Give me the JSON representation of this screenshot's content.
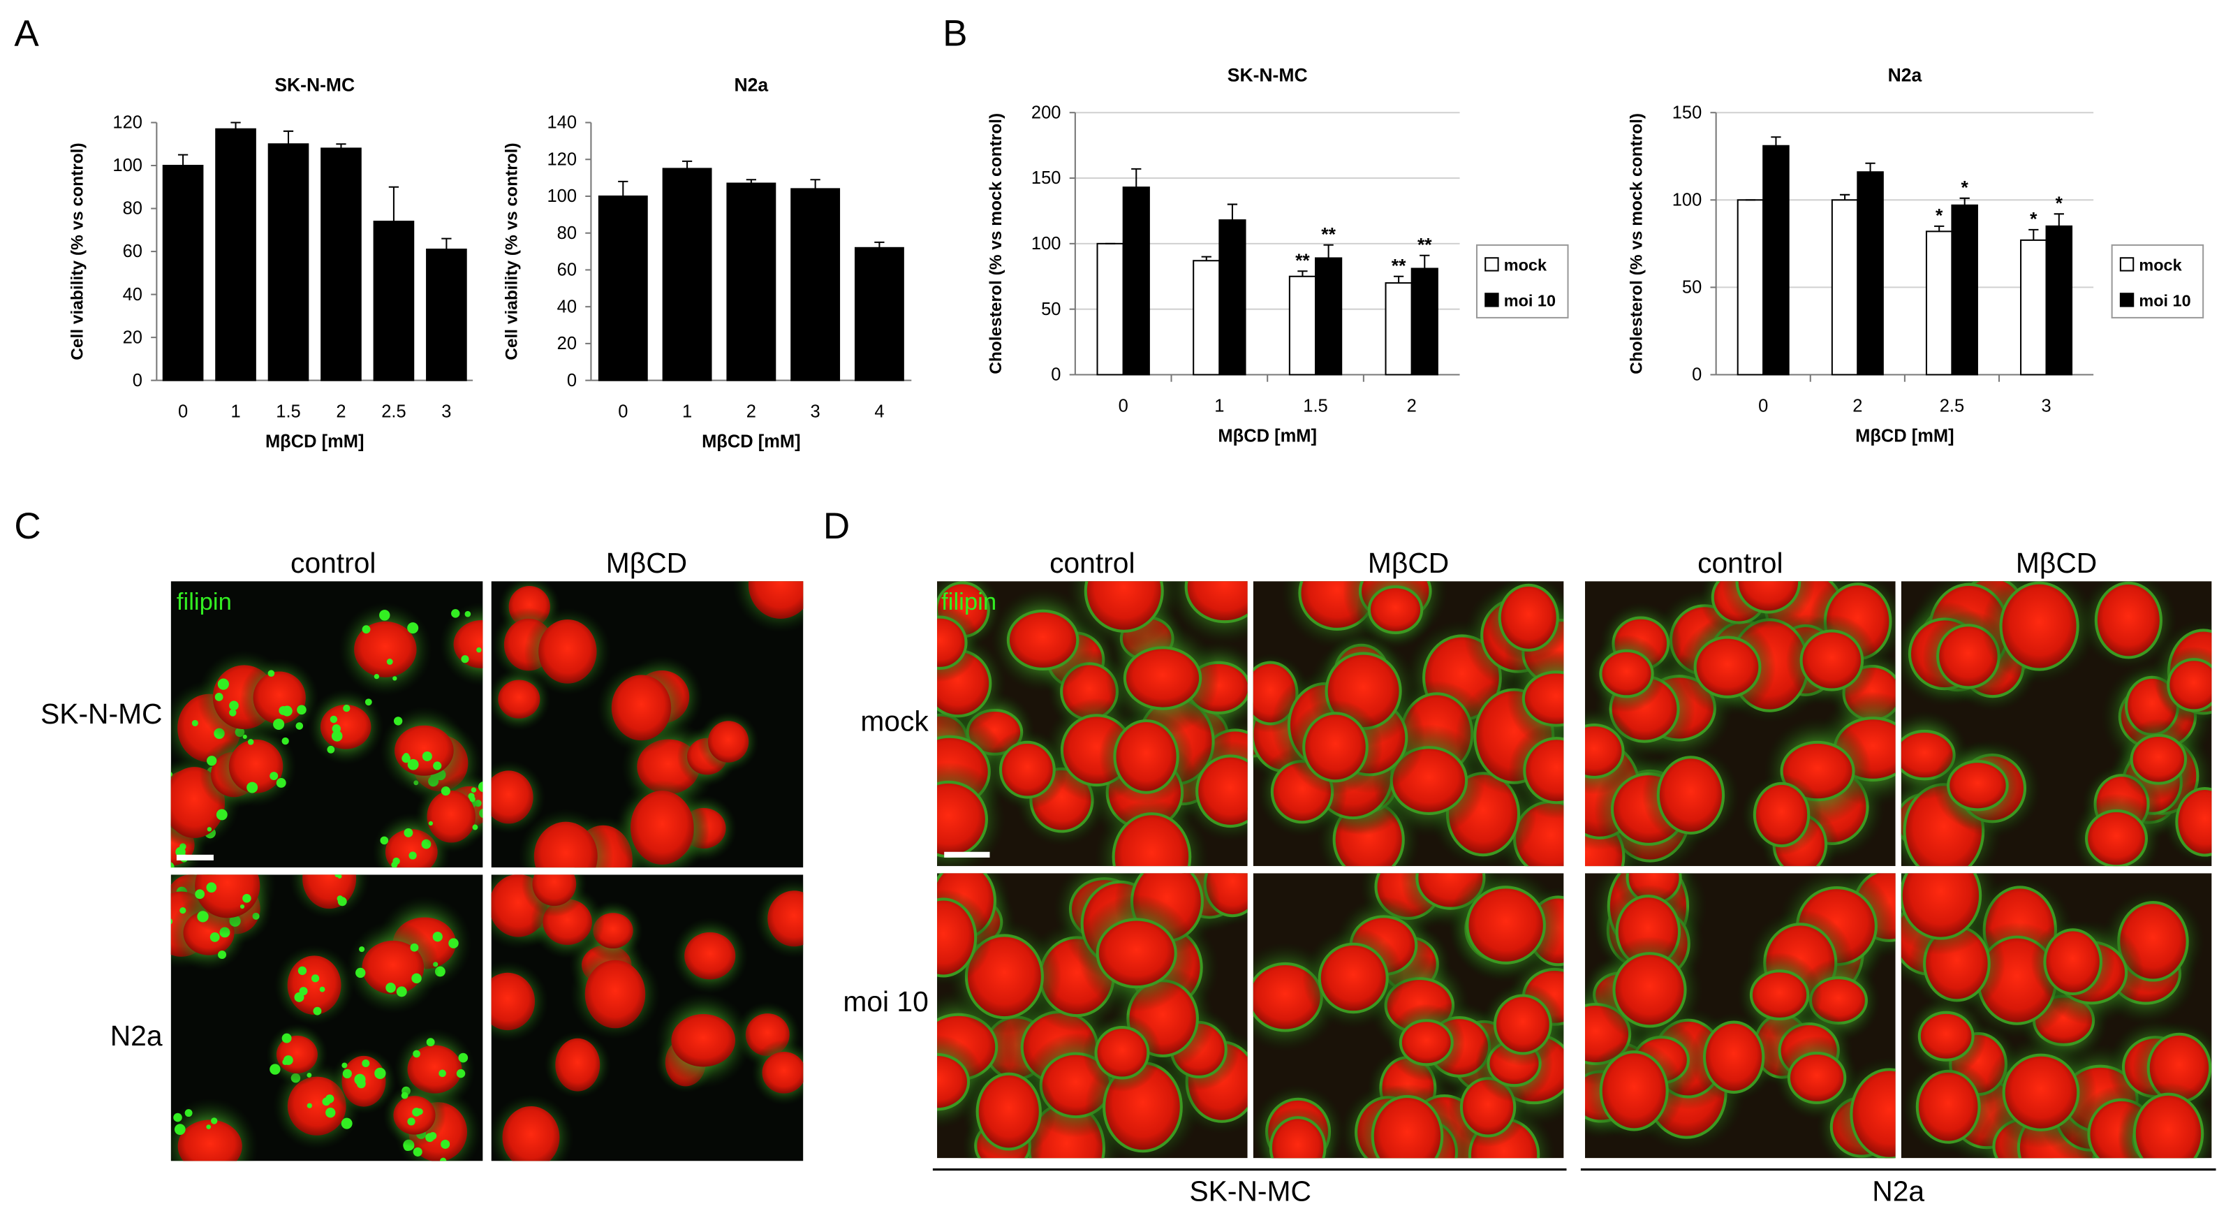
{
  "figure": {
    "panel_labels": [
      "A",
      "B",
      "C",
      "D"
    ]
  },
  "chart_data": [
    {
      "type": "bar",
      "title": "SK-N-MC",
      "ylabel": "Cell viability (% vs control)",
      "xlabel": "MβCD [mM]",
      "categories": [
        "0",
        "1",
        "1.5",
        "2",
        "2.5",
        "3"
      ],
      "values": [
        100,
        117,
        110,
        108,
        74,
        61
      ],
      "errors": [
        5,
        3,
        6,
        2,
        16,
        5
      ],
      "color": "#000000",
      "ylim": [
        0,
        120
      ],
      "yticks": [
        0,
        20,
        40,
        60,
        80,
        100,
        120
      ],
      "grid": false
    },
    {
      "type": "bar",
      "title": "N2a",
      "ylabel": "Cell viability (% vs control)",
      "xlabel": "MβCD [mM]",
      "categories": [
        "0",
        "1",
        "2",
        "3",
        "4"
      ],
      "values": [
        100,
        115,
        107,
        104,
        72
      ],
      "errors": [
        8,
        4,
        2,
        5,
        3
      ],
      "color": "#000000",
      "ylim": [
        0,
        140
      ],
      "yticks": [
        0,
        20,
        40,
        60,
        80,
        100,
        120,
        140
      ],
      "grid": false
    },
    {
      "type": "bar",
      "title": "SK-N-MC",
      "ylabel": "Cholesterol (% vs mock control)",
      "xlabel": "MβCD [mM]",
      "categories": [
        "0",
        "1",
        "1.5",
        "2"
      ],
      "series": [
        {
          "name": "mock",
          "color": "#ffffff",
          "values": [
            100,
            87,
            75,
            70
          ],
          "errors": [
            0,
            3,
            4,
            5
          ],
          "markers": [
            null,
            null,
            "**",
            "**"
          ]
        },
        {
          "name": "moi 10",
          "color": "#000000",
          "values": [
            143,
            118,
            89,
            81
          ],
          "errors": [
            14,
            12,
            10,
            10
          ],
          "markers": [
            null,
            null,
            "**",
            "**"
          ]
        }
      ],
      "ylim": [
        0,
        200
      ],
      "yticks": [
        0,
        50,
        100,
        150,
        200
      ],
      "grid": true,
      "legend": "right"
    },
    {
      "type": "bar",
      "title": "N2a",
      "ylabel": "Cholesterol (% vs mock control)",
      "xlabel": "MβCD [mM]",
      "categories": [
        "0",
        "2",
        "2.5",
        "3"
      ],
      "series": [
        {
          "name": "mock",
          "color": "#ffffff",
          "values": [
            100,
            100,
            82,
            77
          ],
          "errors": [
            0,
            3,
            3,
            6
          ],
          "markers": [
            null,
            null,
            "*",
            "*"
          ]
        },
        {
          "name": "moi 10",
          "color": "#000000",
          "values": [
            131,
            116,
            97,
            85
          ],
          "errors": [
            5,
            5,
            4,
            7
          ],
          "markers": [
            null,
            null,
            "*",
            "*"
          ]
        }
      ],
      "ylim": [
        0,
        150
      ],
      "yticks": [
        0,
        50,
        100,
        150
      ],
      "grid": true,
      "legend": "right"
    }
  ],
  "panel_c": {
    "columns": [
      "control",
      "MβCD"
    ],
    "rows": [
      "SK-N-MC",
      "N2a"
    ],
    "stain": "filipin"
  },
  "panel_d": {
    "columns": [
      "control",
      "MβCD",
      "control",
      "MβCD"
    ],
    "rows": [
      "mock",
      "moi 10"
    ],
    "stain": "filipin",
    "groups": [
      "SK-N-MC",
      "N2a"
    ]
  }
}
